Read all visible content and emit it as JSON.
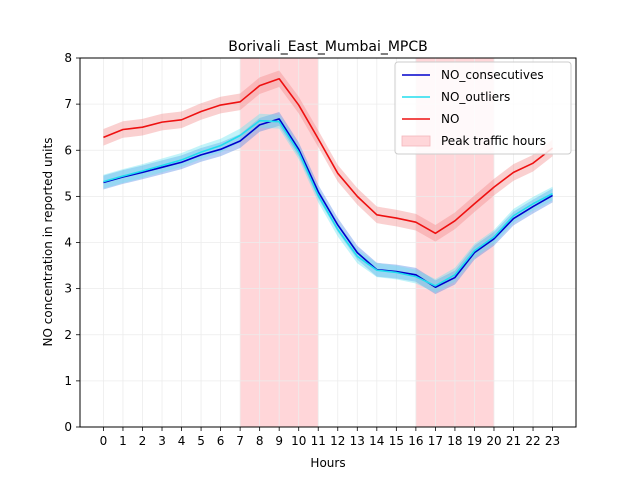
{
  "chart_data": {
    "type": "line",
    "title": "Borivali_East_Mumbai_MPCB",
    "xlabel": "Hours",
    "ylabel": "NO concentration in reported units",
    "x": [
      0,
      1,
      2,
      3,
      4,
      5,
      6,
      7,
      8,
      9,
      10,
      11,
      12,
      13,
      14,
      15,
      16,
      17,
      18,
      19,
      20,
      21,
      22,
      23
    ],
    "xlim": [
      -1.2,
      24.2
    ],
    "ylim": [
      0,
      8
    ],
    "yticks": [
      0,
      1,
      2,
      3,
      4,
      5,
      6,
      7,
      8
    ],
    "grid": true,
    "legend_position": "top-right",
    "peak_traffic_hours": [
      [
        7,
        11
      ],
      [
        16,
        20
      ]
    ],
    "peak_label": "Peak traffic hours",
    "peak_color": "#ffd6d9",
    "series": [
      {
        "name": "NO_consecutives",
        "color": "#0000cc",
        "band_color": "#4f86e6",
        "values": [
          5.3,
          5.42,
          5.52,
          5.63,
          5.74,
          5.9,
          6.02,
          6.2,
          6.55,
          6.68,
          6.02,
          5.1,
          4.38,
          3.78,
          3.41,
          3.37,
          3.3,
          3.03,
          3.24,
          3.78,
          4.08,
          4.52,
          4.78,
          5.02
        ],
        "band_halfwidth": 0.15
      },
      {
        "name": "NO_outliers",
        "color": "#22ddee",
        "band_color": "#66e3f0",
        "values": [
          5.32,
          5.44,
          5.55,
          5.67,
          5.79,
          5.96,
          6.1,
          6.32,
          6.64,
          6.62,
          5.96,
          5.02,
          4.28,
          3.7,
          3.4,
          3.35,
          3.26,
          3.06,
          3.3,
          3.82,
          4.12,
          4.58,
          4.84,
          5.06
        ],
        "band_halfwidth": 0.15
      },
      {
        "name": "NO",
        "color": "#ee1111",
        "band_color": "#f28a8a",
        "values": [
          6.28,
          6.45,
          6.5,
          6.61,
          6.66,
          6.84,
          6.98,
          7.05,
          7.4,
          7.55,
          6.98,
          6.25,
          5.5,
          5.0,
          4.6,
          4.53,
          4.44,
          4.2,
          4.47,
          4.84,
          5.2,
          5.52,
          5.72,
          6.05
        ],
        "band_halfwidth": 0.18
      }
    ]
  }
}
